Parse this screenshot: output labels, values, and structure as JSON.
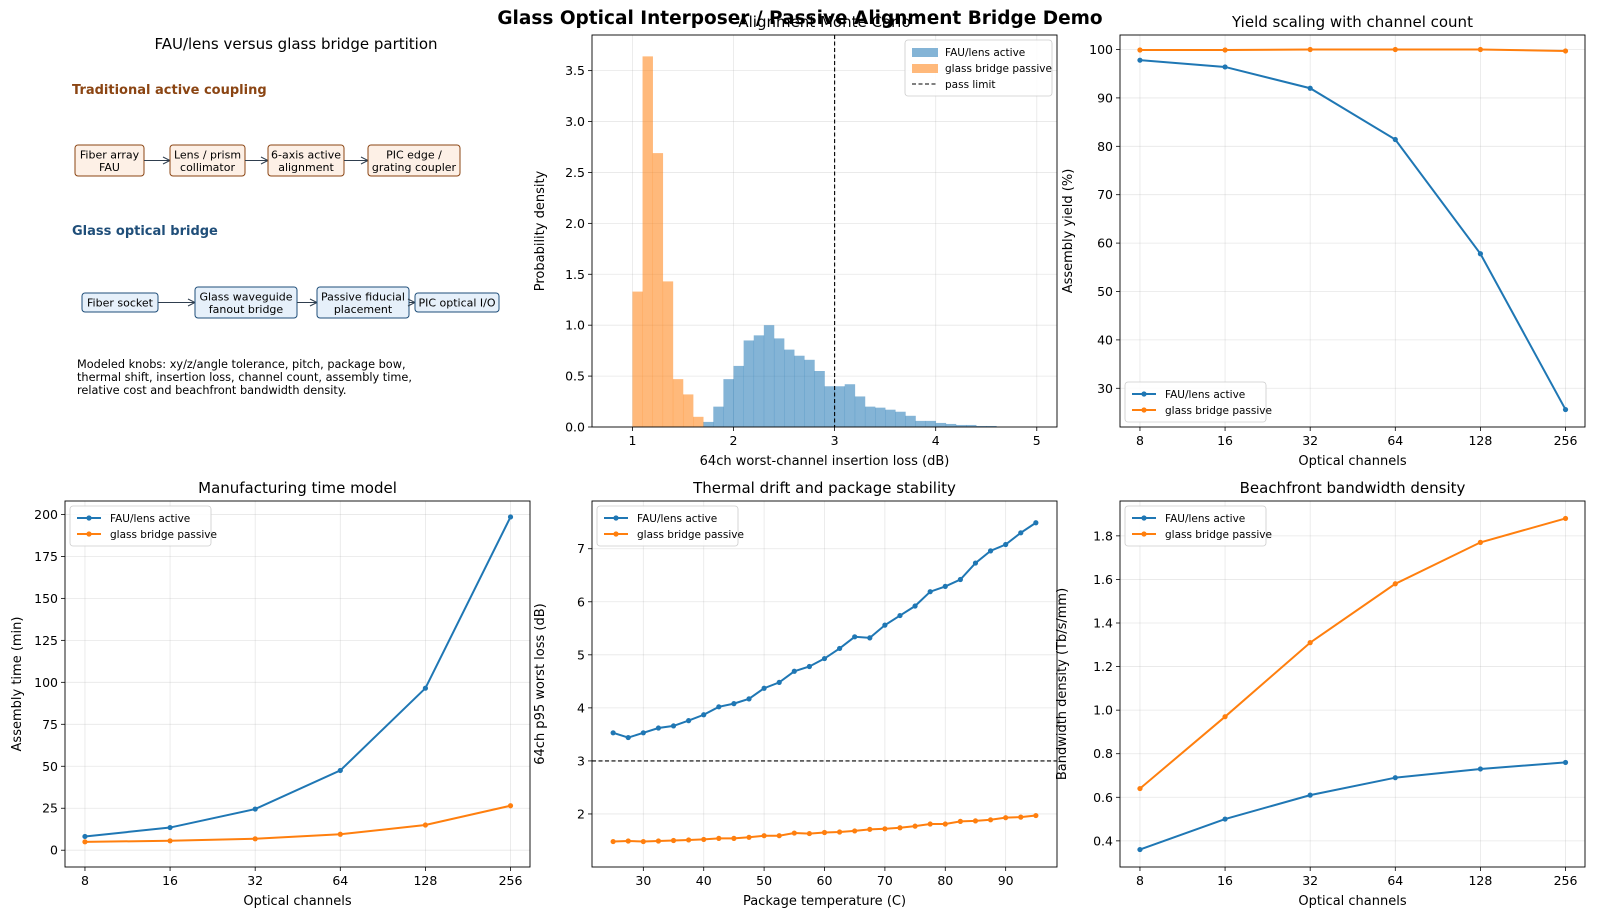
{
  "figure": {
    "title": "Glass Optical Interposer / Passive Alignment Bridge Demo",
    "colors": {
      "active": "#1f77b4",
      "passive": "#ff7f0e",
      "active_header": "#8b4513",
      "glass_header": "#1f4e79"
    }
  },
  "diagram": {
    "title": "FAU/lens versus glass bridge partition",
    "active_header": "Traditional active coupling",
    "active_boxes": [
      {
        "lines": [
          "Fiber array",
          "FAU"
        ]
      },
      {
        "lines": [
          "Lens / prism",
          "collimator"
        ]
      },
      {
        "lines": [
          "6-axis active",
          "alignment"
        ]
      },
      {
        "lines": [
          "PIC edge /",
          "grating coupler"
        ]
      }
    ],
    "glass_header": "Glass optical bridge",
    "glass_boxes": [
      {
        "lines": [
          "Fiber socket"
        ]
      },
      {
        "lines": [
          "Glass waveguide",
          "fanout bridge"
        ]
      },
      {
        "lines": [
          "Passive fiducial",
          "placement"
        ]
      },
      {
        "lines": [
          "PIC optical I/O"
        ]
      }
    ],
    "knobs": [
      "Modeled knobs: xy/z/angle tolerance, pitch, package bow,",
      "thermal shift, insertion loss, channel count, assembly time,",
      "relative cost and beachfront bandwidth density."
    ]
  },
  "chart_data": [
    {
      "id": "hist",
      "type": "histogram",
      "title": "Alignment Monte Carlo",
      "xlabel": "64ch worst-channel insertion loss (dB)",
      "ylabel": "Probability density",
      "xlim": [
        0.6,
        5.2
      ],
      "ylim": [
        0,
        3.85
      ],
      "xticks": [
        1,
        2,
        3,
        4,
        5
      ],
      "yticks": [
        0.0,
        0.5,
        1.0,
        1.5,
        2.0,
        2.5,
        3.0,
        3.5
      ],
      "yticklabels": [
        "0.0",
        "0.5",
        "1.0",
        "1.5",
        "2.0",
        "2.5",
        "3.0",
        "3.5"
      ],
      "series": [
        {
          "name": "FAU/lens active",
          "color": "#1f77b4",
          "alpha": 0.55,
          "bin_width": 0.1,
          "bins_start": [
            1.7,
            1.8,
            1.9,
            2.0,
            2.1,
            2.2,
            2.3,
            2.4,
            2.5,
            2.6,
            2.7,
            2.8,
            2.9,
            3.0,
            3.1,
            3.2,
            3.3,
            3.4,
            3.5,
            3.6,
            3.7,
            3.8,
            3.9,
            4.0,
            4.1,
            4.2,
            4.3,
            4.4,
            4.5
          ],
          "density": [
            0.05,
            0.2,
            0.47,
            0.6,
            0.85,
            0.9,
            1.0,
            0.87,
            0.76,
            0.7,
            0.66,
            0.55,
            0.4,
            0.4,
            0.42,
            0.3,
            0.2,
            0.19,
            0.17,
            0.15,
            0.11,
            0.06,
            0.06,
            0.04,
            0.03,
            0.02,
            0.02,
            0.01,
            0.01
          ]
        },
        {
          "name": "glass bridge passive",
          "color": "#ff7f0e",
          "alpha": 0.55,
          "bin_width": 0.1,
          "bins_start": [
            1.0,
            1.1,
            1.2,
            1.3,
            1.4,
            1.5,
            1.6
          ],
          "density": [
            1.33,
            3.64,
            2.69,
            1.43,
            0.47,
            0.32,
            0.1
          ]
        }
      ],
      "vline": {
        "name": "pass limit",
        "x": 3.0
      },
      "legend": "upper right"
    },
    {
      "id": "yield",
      "type": "line",
      "title": "Yield scaling with channel count",
      "xlabel": "Optical channels",
      "ylabel": "Assembly yield (%)",
      "x": [
        8,
        16,
        32,
        64,
        128,
        256
      ],
      "xscale": "log2",
      "xlim": [
        6.8,
        300
      ],
      "ylim": [
        22,
        103
      ],
      "yticks": [
        30,
        40,
        50,
        60,
        70,
        80,
        90,
        100
      ],
      "series": [
        {
          "name": "FAU/lens active",
          "color": "#1f77b4",
          "values": [
            97.8,
            96.4,
            92.0,
            81.4,
            57.8,
            25.6
          ]
        },
        {
          "name": "glass bridge passive",
          "color": "#ff7f0e",
          "values": [
            99.9,
            99.9,
            100.0,
            100.0,
            100.0,
            99.7
          ]
        }
      ],
      "legend": "lower left"
    },
    {
      "id": "time",
      "type": "line",
      "title": "Manufacturing time model",
      "xlabel": "Optical channels",
      "ylabel": "Assembly time (min)",
      "x": [
        8,
        16,
        32,
        64,
        128,
        256
      ],
      "xscale": "log2",
      "xlim": [
        6.8,
        300
      ],
      "ylim": [
        -10,
        208
      ],
      "yticks": [
        0,
        25,
        50,
        75,
        100,
        125,
        150,
        175,
        200
      ],
      "series": [
        {
          "name": "FAU/lens active",
          "color": "#1f77b4",
          "values": [
            8.2,
            13.5,
            24.5,
            47.5,
            96.5,
            198.5
          ]
        },
        {
          "name": "glass bridge passive",
          "color": "#ff7f0e",
          "values": [
            5.0,
            5.6,
            6.8,
            9.5,
            15.0,
            26.5
          ]
        }
      ],
      "legend": "upper left"
    },
    {
      "id": "thermal",
      "type": "line",
      "title": "Thermal drift and package stability",
      "xlabel": "Package temperature (C)",
      "ylabel": "64ch p95 worst loss (dB)",
      "x": [
        25,
        27.5,
        30,
        32.5,
        35,
        37.5,
        40,
        42.5,
        45,
        47.5,
        50,
        52.5,
        55,
        57.5,
        60,
        62.5,
        65,
        67.5,
        70,
        72.5,
        75,
        77.5,
        80,
        82.5,
        85,
        87.5,
        90,
        92.5,
        95
      ],
      "xlim": [
        21.5,
        98.5
      ],
      "ylim": [
        1.0,
        7.9
      ],
      "xticks": [
        30,
        40,
        50,
        60,
        70,
        80,
        90
      ],
      "yticks": [
        2,
        3,
        4,
        5,
        6,
        7
      ],
      "series": [
        {
          "name": "FAU/lens active",
          "color": "#1f77b4",
          "values": [
            3.53,
            3.44,
            3.53,
            3.62,
            3.66,
            3.76,
            3.87,
            4.02,
            4.08,
            4.17,
            4.37,
            4.48,
            4.69,
            4.78,
            4.93,
            5.12,
            5.34,
            5.32,
            5.56,
            5.74,
            5.92,
            6.19,
            6.29,
            6.42,
            6.73,
            6.96,
            7.08,
            7.3,
            7.49
          ]
        },
        {
          "name": "glass bridge passive",
          "color": "#ff7f0e",
          "values": [
            1.48,
            1.49,
            1.48,
            1.49,
            1.5,
            1.51,
            1.52,
            1.54,
            1.54,
            1.56,
            1.59,
            1.59,
            1.64,
            1.63,
            1.65,
            1.66,
            1.68,
            1.71,
            1.72,
            1.74,
            1.77,
            1.81,
            1.81,
            1.86,
            1.87,
            1.89,
            1.93,
            1.94,
            1.97
          ]
        }
      ],
      "hline": {
        "y": 3.0
      },
      "legend": "upper left"
    },
    {
      "id": "density",
      "type": "line",
      "title": "Beachfront bandwidth density",
      "xlabel": "Optical channels",
      "ylabel": "Bandwidth density (Tb/s/mm)",
      "x": [
        8,
        16,
        32,
        64,
        128,
        256
      ],
      "xscale": "log2",
      "xlim": [
        6.8,
        300
      ],
      "ylim": [
        0.28,
        1.96
      ],
      "yticks": [
        0.4,
        0.6,
        0.8,
        1.0,
        1.2,
        1.4,
        1.6,
        1.8
      ],
      "yticklabels": [
        "0.4",
        "0.6",
        "0.8",
        "1.0",
        "1.2",
        "1.4",
        "1.6",
        "1.8"
      ],
      "series": [
        {
          "name": "FAU/lens active",
          "color": "#1f77b4",
          "values": [
            0.36,
            0.5,
            0.61,
            0.69,
            0.73,
            0.76
          ]
        },
        {
          "name": "glass bridge passive",
          "color": "#ff7f0e",
          "values": [
            0.64,
            0.97,
            1.31,
            1.58,
            1.77,
            1.88
          ]
        }
      ],
      "legend": "upper left"
    }
  ]
}
